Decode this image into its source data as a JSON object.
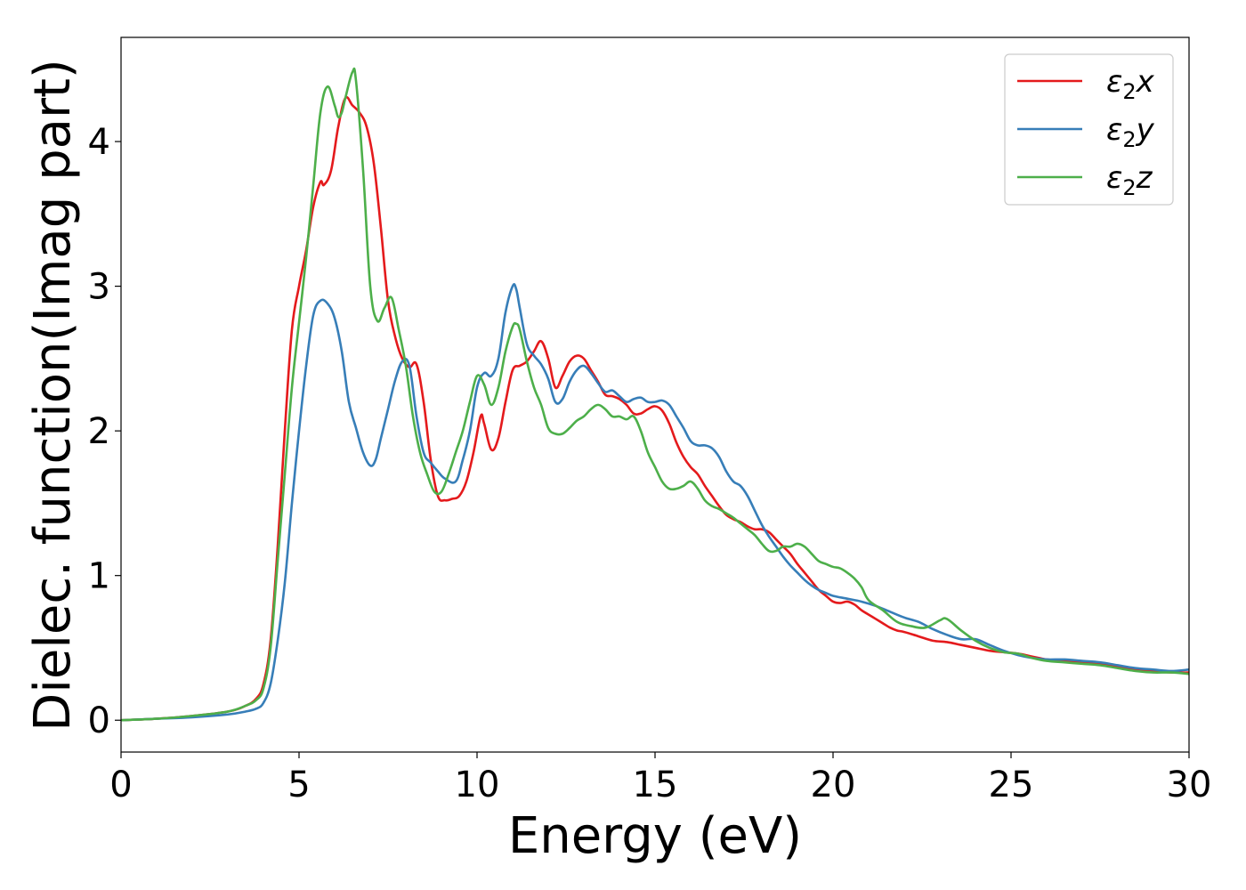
{
  "chart_data": {
    "type": "line",
    "xlabel": "Energy (eV)",
    "ylabel": "Dielec. function(Imag part)",
    "xlim": [
      0,
      30
    ],
    "ylim": [
      -0.22,
      4.72
    ],
    "xticks": [
      0,
      5,
      10,
      15,
      20,
      25,
      30
    ],
    "yticks": [
      0,
      1,
      2,
      3,
      4
    ],
    "grid": false,
    "legend_position": "top-right",
    "series": [
      {
        "name": "ε2x",
        "legend": {
          "base": "ε",
          "sub": "2",
          "comp": "x"
        },
        "color": "#e41a1c",
        "x": [
          0,
          1,
          2,
          3,
          3.5,
          3.8,
          4.0,
          4.2,
          4.4,
          4.6,
          4.8,
          5.0,
          5.2,
          5.4,
          5.6,
          5.7,
          5.9,
          6.1,
          6.3,
          6.5,
          6.7,
          6.9,
          7.1,
          7.3,
          7.5,
          7.7,
          7.9,
          8.1,
          8.3,
          8.5,
          8.7,
          8.9,
          9.1,
          9.3,
          9.5,
          9.7,
          9.9,
          10.1,
          10.2,
          10.4,
          10.6,
          10.8,
          11.0,
          11.2,
          11.4,
          11.6,
          11.8,
          12.0,
          12.2,
          12.4,
          12.6,
          12.8,
          13.0,
          13.2,
          13.4,
          13.6,
          13.8,
          14.0,
          14.2,
          14.4,
          14.6,
          14.8,
          15.0,
          15.2,
          15.4,
          15.6,
          15.8,
          16.0,
          16.2,
          16.4,
          16.6,
          16.8,
          17.0,
          17.2,
          17.4,
          17.6,
          17.8,
          18.0,
          18.2,
          18.4,
          18.6,
          18.8,
          19.0,
          19.2,
          19.4,
          19.6,
          19.8,
          20.0,
          20.2,
          20.4,
          20.6,
          20.8,
          21.0,
          21.2,
          21.4,
          21.6,
          21.8,
          22.0,
          22.4,
          22.8,
          23.2,
          23.6,
          24.0,
          24.4,
          24.8,
          25.2,
          25.6,
          26.0,
          26.5,
          27.0,
          27.5,
          28.0,
          28.5,
          29.0,
          29.5,
          30.0
        ],
        "y": [
          0,
          0.01,
          0.03,
          0.06,
          0.1,
          0.15,
          0.25,
          0.55,
          1.2,
          2.0,
          2.7,
          3.0,
          3.25,
          3.55,
          3.72,
          3.7,
          3.8,
          4.1,
          4.3,
          4.25,
          4.2,
          4.1,
          3.85,
          3.4,
          2.9,
          2.65,
          2.5,
          2.44,
          2.46,
          2.2,
          1.8,
          1.55,
          1.52,
          1.53,
          1.55,
          1.65,
          1.85,
          2.1,
          2.05,
          1.87,
          1.95,
          2.2,
          2.42,
          2.45,
          2.48,
          2.55,
          2.62,
          2.5,
          2.3,
          2.38,
          2.48,
          2.52,
          2.5,
          2.42,
          2.34,
          2.25,
          2.24,
          2.22,
          2.18,
          2.12,
          2.12,
          2.15,
          2.17,
          2.14,
          2.05,
          1.92,
          1.82,
          1.75,
          1.7,
          1.62,
          1.55,
          1.48,
          1.42,
          1.39,
          1.37,
          1.34,
          1.32,
          1.32,
          1.3,
          1.25,
          1.2,
          1.15,
          1.08,
          1.02,
          0.96,
          0.9,
          0.86,
          0.82,
          0.81,
          0.82,
          0.8,
          0.76,
          0.73,
          0.7,
          0.67,
          0.64,
          0.62,
          0.61,
          0.58,
          0.55,
          0.54,
          0.52,
          0.5,
          0.48,
          0.47,
          0.46,
          0.44,
          0.42,
          0.41,
          0.4,
          0.39,
          0.37,
          0.35,
          0.34,
          0.33,
          0.33
        ],
        "rel": [
          [
            0,
            0,
            0
          ],
          [
            1,
            0,
            0.01
          ],
          [
            2,
            0,
            0.03
          ],
          [
            3,
            0,
            0.06
          ],
          [
            3.5,
            0,
            0.1
          ],
          [
            3.8,
            0,
            0.15
          ],
          [
            4,
            0,
            0.25
          ]
        ]
      },
      {
        "name": "ε2y",
        "legend": {
          "base": "ε",
          "sub": "2",
          "comp": "y"
        },
        "color": "#377eb8",
        "x": [
          0,
          1,
          2,
          3,
          3.5,
          3.8,
          4.0,
          4.2,
          4.4,
          4.6,
          4.8,
          5.0,
          5.2,
          5.4,
          5.6,
          5.8,
          6.0,
          6.2,
          6.4,
          6.6,
          6.8,
          7.0,
          7.15,
          7.3,
          7.5,
          7.7,
          7.9,
          8.1,
          8.3,
          8.5,
          8.7,
          8.9,
          9.1,
          9.4,
          9.6,
          9.8,
          10.0,
          10.2,
          10.4,
          10.6,
          10.8,
          11.0,
          11.1,
          11.2,
          11.4,
          11.6,
          11.8,
          12.0,
          12.2,
          12.4,
          12.6,
          12.8,
          13.0,
          13.2,
          13.4,
          13.6,
          13.8,
          14.0,
          14.2,
          14.4,
          14.6,
          14.8,
          15.0,
          15.2,
          15.4,
          15.6,
          15.8,
          16.0,
          16.2,
          16.4,
          16.6,
          16.8,
          17.0,
          17.2,
          17.4,
          17.6,
          17.8,
          18.0,
          18.2,
          18.4,
          18.6,
          18.8,
          19.0,
          19.2,
          19.4,
          19.6,
          19.8,
          20.0,
          20.4,
          20.8,
          21.2,
          21.6,
          22.0,
          22.4,
          22.8,
          23.2,
          23.6,
          24.0,
          24.4,
          24.8,
          25.2,
          25.6,
          26.0,
          26.5,
          27.0,
          27.5,
          28.0,
          28.5,
          29.0,
          29.5,
          30.0
        ],
        "y": [
          0,
          0.01,
          0.02,
          0.04,
          0.06,
          0.08,
          0.12,
          0.25,
          0.55,
          0.95,
          1.5,
          2.0,
          2.45,
          2.8,
          2.9,
          2.88,
          2.78,
          2.55,
          2.2,
          2.02,
          1.85,
          1.76,
          1.8,
          1.95,
          2.15,
          2.35,
          2.48,
          2.45,
          2.1,
          1.85,
          1.78,
          1.72,
          1.67,
          1.65,
          1.8,
          2.0,
          2.3,
          2.4,
          2.38,
          2.5,
          2.82,
          3.0,
          2.98,
          2.85,
          2.6,
          2.52,
          2.46,
          2.36,
          2.2,
          2.22,
          2.34,
          2.42,
          2.45,
          2.4,
          2.33,
          2.27,
          2.28,
          2.24,
          2.2,
          2.22,
          2.23,
          2.2,
          2.2,
          2.21,
          2.18,
          2.1,
          2.02,
          1.93,
          1.9,
          1.9,
          1.88,
          1.82,
          1.72,
          1.65,
          1.62,
          1.55,
          1.45,
          1.35,
          1.27,
          1.2,
          1.13,
          1.07,
          1.02,
          0.97,
          0.93,
          0.9,
          0.88,
          0.86,
          0.84,
          0.82,
          0.79,
          0.75,
          0.71,
          0.68,
          0.63,
          0.59,
          0.56,
          0.56,
          0.52,
          0.48,
          0.45,
          0.43,
          0.42,
          0.42,
          0.41,
          0.4,
          0.38,
          0.36,
          0.35,
          0.34,
          0.35
        ],
        "rel": []
      },
      {
        "name": "ε2z",
        "legend": {
          "base": "ε",
          "sub": "2",
          "comp": "z"
        },
        "color": "#4daf4a",
        "x": [
          0,
          1,
          2,
          3,
          3.5,
          3.8,
          4.0,
          4.2,
          4.4,
          4.6,
          4.8,
          5.0,
          5.2,
          5.4,
          5.6,
          5.8,
          6.0,
          6.1,
          6.2,
          6.3,
          6.5,
          6.6,
          6.8,
          7.0,
          7.2,
          7.4,
          7.6,
          7.8,
          8.0,
          8.2,
          8.4,
          8.6,
          8.8,
          9.0,
          9.2,
          9.4,
          9.6,
          9.8,
          10.0,
          10.2,
          10.4,
          10.6,
          10.8,
          11.0,
          11.1,
          11.2,
          11.4,
          11.6,
          11.8,
          12.0,
          12.2,
          12.4,
          12.6,
          12.8,
          13.0,
          13.2,
          13.4,
          13.6,
          13.8,
          14.0,
          14.2,
          14.4,
          14.6,
          14.8,
          15.0,
          15.2,
          15.4,
          15.6,
          15.8,
          16.0,
          16.2,
          16.4,
          16.6,
          16.8,
          17.0,
          17.2,
          17.4,
          17.6,
          17.8,
          18.0,
          18.2,
          18.4,
          18.6,
          18.8,
          19.0,
          19.2,
          19.4,
          19.6,
          19.8,
          20.0,
          20.2,
          20.4,
          20.6,
          20.8,
          21.0,
          21.4,
          21.8,
          22.2,
          22.6,
          23.0,
          23.2,
          23.6,
          24.0,
          24.4,
          24.8,
          25.2,
          25.6,
          26.0,
          26.5,
          27.0,
          27.5,
          28.0,
          28.5,
          29.0,
          29.5,
          30.0
        ],
        "y": [
          0,
          0.01,
          0.03,
          0.06,
          0.1,
          0.14,
          0.22,
          0.5,
          1.1,
          1.7,
          2.3,
          2.75,
          3.2,
          3.7,
          4.2,
          4.38,
          4.25,
          4.17,
          4.2,
          4.3,
          4.48,
          4.42,
          3.8,
          3.0,
          2.76,
          2.85,
          2.92,
          2.7,
          2.45,
          2.1,
          1.85,
          1.7,
          1.58,
          1.58,
          1.7,
          1.85,
          2.0,
          2.2,
          2.38,
          2.32,
          2.18,
          2.3,
          2.55,
          2.72,
          2.74,
          2.7,
          2.48,
          2.3,
          2.18,
          2.02,
          1.98,
          1.98,
          2.02,
          2.07,
          2.1,
          2.15,
          2.18,
          2.15,
          2.1,
          2.1,
          2.08,
          2.1,
          2.0,
          1.85,
          1.75,
          1.65,
          1.6,
          1.6,
          1.62,
          1.65,
          1.6,
          1.52,
          1.48,
          1.46,
          1.43,
          1.4,
          1.36,
          1.32,
          1.28,
          1.22,
          1.17,
          1.17,
          1.2,
          1.2,
          1.22,
          1.2,
          1.15,
          1.1,
          1.08,
          1.06,
          1.05,
          1.02,
          0.98,
          0.92,
          0.83,
          0.76,
          0.68,
          0.65,
          0.64,
          0.69,
          0.7,
          0.62,
          0.55,
          0.5,
          0.47,
          0.46,
          0.43,
          0.41,
          0.4,
          0.39,
          0.38,
          0.36,
          0.34,
          0.33,
          0.33,
          0.32
        ],
        "rel": []
      }
    ]
  }
}
